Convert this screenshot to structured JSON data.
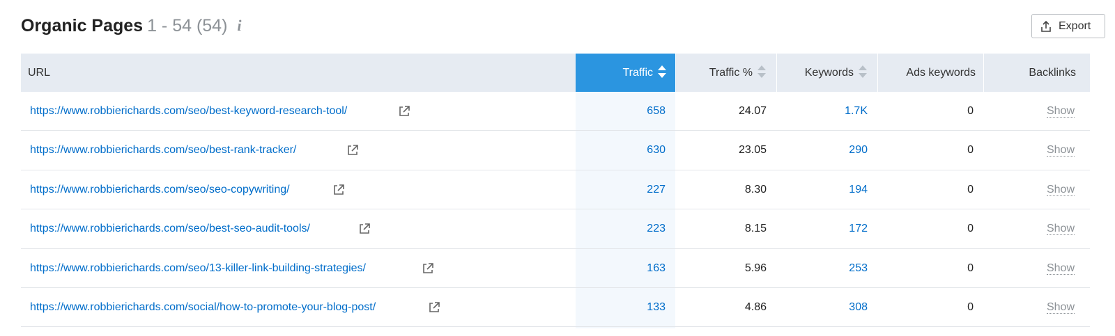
{
  "header": {
    "title": "Organic Pages",
    "count": "1 - 54 (54)",
    "info_icon": "info-icon",
    "export_label": "Export"
  },
  "columns": {
    "url": "URL",
    "traffic": "Traffic",
    "traffic_pct": "Traffic %",
    "keywords": "Keywords",
    "ads_keywords": "Ads keywords",
    "backlinks": "Backlinks"
  },
  "colors": {
    "accent": "#2b95e0",
    "link": "#006dca",
    "header_bg": "#e6ebf2"
  },
  "rows": [
    {
      "url": "https://www.robbierichards.com/seo/best-keyword-research-tool/",
      "traffic": "658",
      "traffic_pct": "24.07",
      "keywords": "1.7K",
      "ads_keywords": "0",
      "backlinks": "Show"
    },
    {
      "url": "https://www.robbierichards.com/seo/best-rank-tracker/",
      "traffic": "630",
      "traffic_pct": "23.05",
      "keywords": "290",
      "ads_keywords": "0",
      "backlinks": "Show"
    },
    {
      "url": "https://www.robbierichards.com/seo/seo-copywriting/",
      "traffic": "227",
      "traffic_pct": "8.30",
      "keywords": "194",
      "ads_keywords": "0",
      "backlinks": "Show"
    },
    {
      "url": "https://www.robbierichards.com/seo/best-seo-audit-tools/",
      "traffic": "223",
      "traffic_pct": "8.15",
      "keywords": "172",
      "ads_keywords": "0",
      "backlinks": "Show"
    },
    {
      "url": "https://www.robbierichards.com/seo/13-killer-link-building-strategies/",
      "traffic": "163",
      "traffic_pct": "5.96",
      "keywords": "253",
      "ads_keywords": "0",
      "backlinks": "Show"
    },
    {
      "url": "https://www.robbierichards.com/social/how-to-promote-your-blog-post/",
      "traffic": "133",
      "traffic_pct": "4.86",
      "keywords": "308",
      "ads_keywords": "0",
      "backlinks": "Show"
    }
  ]
}
